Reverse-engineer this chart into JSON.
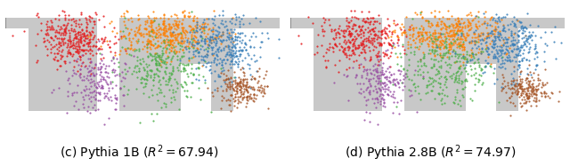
{
  "title_left": "(c) Pythia 1B ($R^2 = 67.94$)",
  "title_right": "(d) Pythia 2.8B ($R^2 = 74.97$)",
  "title_fontsize": 10,
  "figsize": [
    6.4,
    1.87
  ],
  "dpi": 100,
  "background_color": "#ffffff",
  "map_bg_color": "#c8c8c8",
  "ocean_color": "#ffffff",
  "cluster_colors": [
    "#e41a1c",
    "#ff7f00",
    "#4daf4a",
    "#377eb8",
    "#984ea3",
    "#a65628"
  ],
  "n_points": 2000,
  "seed": 42
}
